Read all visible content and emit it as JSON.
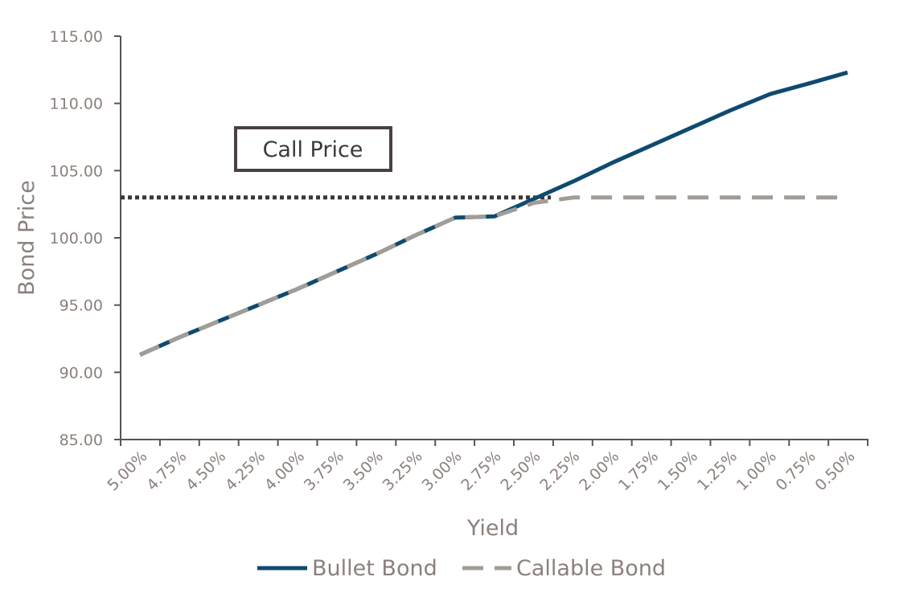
{
  "chart_data": {
    "type": "line",
    "xlabel": "Yield",
    "ylabel": "Bond Price",
    "ylim": [
      85,
      115
    ],
    "y_ticks": [
      "85.00",
      "90.00",
      "95.00",
      "100.00",
      "105.00",
      "110.00",
      "115.00"
    ],
    "categories": [
      "5.00%",
      "4.75%",
      "4.50%",
      "4.25%",
      "4.00%",
      "3.75%",
      "3.50%",
      "3.25%",
      "3.00%",
      "2.75%",
      "2.50%",
      "2.25%",
      "2.00%",
      "1.75%",
      "1.50%",
      "1.25%",
      "1.00%",
      "0.75%",
      "0.50%"
    ],
    "series": [
      {
        "name": "Bullet Bond",
        "color": "#0f4a6f",
        "style": "solid",
        "values": [
          91.3,
          92.6,
          93.8,
          95.0,
          96.2,
          97.5,
          98.8,
          100.2,
          101.6,
          103.0,
          104.5,
          106.0,
          107.5,
          108.9,
          110.3,
          111.8,
          112.3,
          112.3,
          112.3
        ]
      },
      {
        "name": "Callable Bond",
        "color": "#a19d96",
        "style": "dashed",
        "values": [
          91.3,
          92.6,
          93.8,
          95.0,
          96.2,
          97.5,
          98.8,
          100.2,
          101.5,
          102.6,
          103.0,
          103.0,
          103.0,
          103.0,
          103.0,
          103.0,
          103.0,
          103.0,
          103.0
        ]
      }
    ],
    "reference_line": {
      "label": "Call Price",
      "value": 103.0,
      "color": "#3d3634",
      "style": "dotted"
    },
    "legend_position": "bottom-center",
    "grid": false
  }
}
